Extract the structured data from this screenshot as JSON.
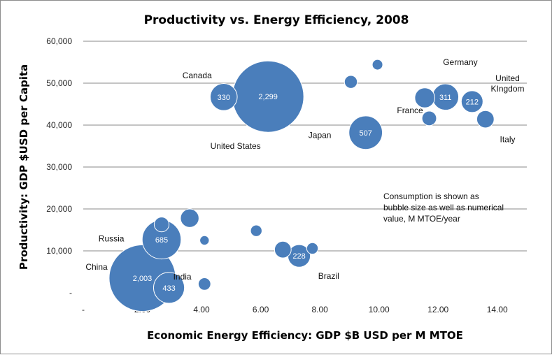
{
  "chart_data": {
    "type": "bubble",
    "title": "Productivity vs. Energy Efficiency, 2008",
    "xlabel": "Economic Energy Efficiency: GDP $B USD per M MTOE",
    "ylabel": "Productivity: GDP $USD per Capita",
    "xlim": [
      0,
      15
    ],
    "ylim": [
      0,
      60000
    ],
    "x_ticks": [
      "-",
      "2.00",
      "4.00",
      "6.00",
      "8.00",
      "10.00",
      "12.00",
      "14.00"
    ],
    "y_ticks": [
      "-",
      "10,000",
      "20,000",
      "30,000",
      "40,000",
      "50,000",
      "60,000"
    ],
    "grid": "horizontal",
    "bubble_color": "#4a7ebb",
    "points": [
      {
        "x": 6.25,
        "y": 46800,
        "size": 2299,
        "label": "2,299"
      },
      {
        "x": 2.0,
        "y": 3500,
        "size": 2003,
        "label": "2,003"
      },
      {
        "x": 2.65,
        "y": 12700,
        "size": 685,
        "label": "685"
      },
      {
        "x": 9.55,
        "y": 38200,
        "size": 507,
        "label": "507"
      },
      {
        "x": 2.9,
        "y": 1200,
        "size": 433,
        "label": "433"
      },
      {
        "x": 4.75,
        "y": 46700,
        "size": 330,
        "label": "330"
      },
      {
        "x": 12.25,
        "y": 46700,
        "size": 311,
        "label": "311"
      },
      {
        "x": 7.3,
        "y": 8800,
        "size": 228,
        "label": "228"
      },
      {
        "x": 13.15,
        "y": 45600,
        "size": 212,
        "label": "212"
      },
      {
        "x": 11.55,
        "y": 46500,
        "size": 180,
        "label": ""
      },
      {
        "x": 3.6,
        "y": 17800,
        "size": 155,
        "label": ""
      },
      {
        "x": 13.6,
        "y": 41400,
        "size": 135,
        "label": ""
      },
      {
        "x": 6.75,
        "y": 10300,
        "size": 125,
        "label": ""
      },
      {
        "x": 2.65,
        "y": 16300,
        "size": 100,
        "label": ""
      },
      {
        "x": 11.7,
        "y": 41600,
        "size": 95,
        "label": ""
      },
      {
        "x": 9.05,
        "y": 50300,
        "size": 75,
        "label": ""
      },
      {
        "x": 4.1,
        "y": 2100,
        "size": 70,
        "label": ""
      },
      {
        "x": 5.85,
        "y": 14800,
        "size": 60,
        "label": ""
      },
      {
        "x": 7.75,
        "y": 10600,
        "size": 60,
        "label": ""
      },
      {
        "x": 9.95,
        "y": 54400,
        "size": 50,
        "label": ""
      },
      {
        "x": 4.1,
        "y": 12500,
        "size": 40,
        "label": ""
      }
    ],
    "country_labels": [
      {
        "text": "Canada",
        "x": 3.85,
        "y": 51800
      },
      {
        "text": "United States",
        "x": 5.15,
        "y": 35000
      },
      {
        "text": "Germany",
        "x": 12.75,
        "y": 55000
      },
      {
        "text": "United",
        "x": 14.35,
        "y": 51200
      },
      {
        "text": "KIngdom",
        "x": 14.35,
        "y": 48700
      },
      {
        "text": "France",
        "x": 11.05,
        "y": 43500
      },
      {
        "text": "Japan",
        "x": 8.0,
        "y": 37600
      },
      {
        "text": "Italy",
        "x": 14.35,
        "y": 36600
      },
      {
        "text": "Russia",
        "x": 0.95,
        "y": 12900
      },
      {
        "text": "China",
        "x": 0.45,
        "y": 6200
      },
      {
        "text": "India",
        "x": 3.35,
        "y": 3800
      },
      {
        "text": "Brazil",
        "x": 8.3,
        "y": 4000
      }
    ],
    "annotation": [
      "Consumption is shown as",
      "bubble size as well as numerical",
      "value, M MTOE/year"
    ]
  }
}
